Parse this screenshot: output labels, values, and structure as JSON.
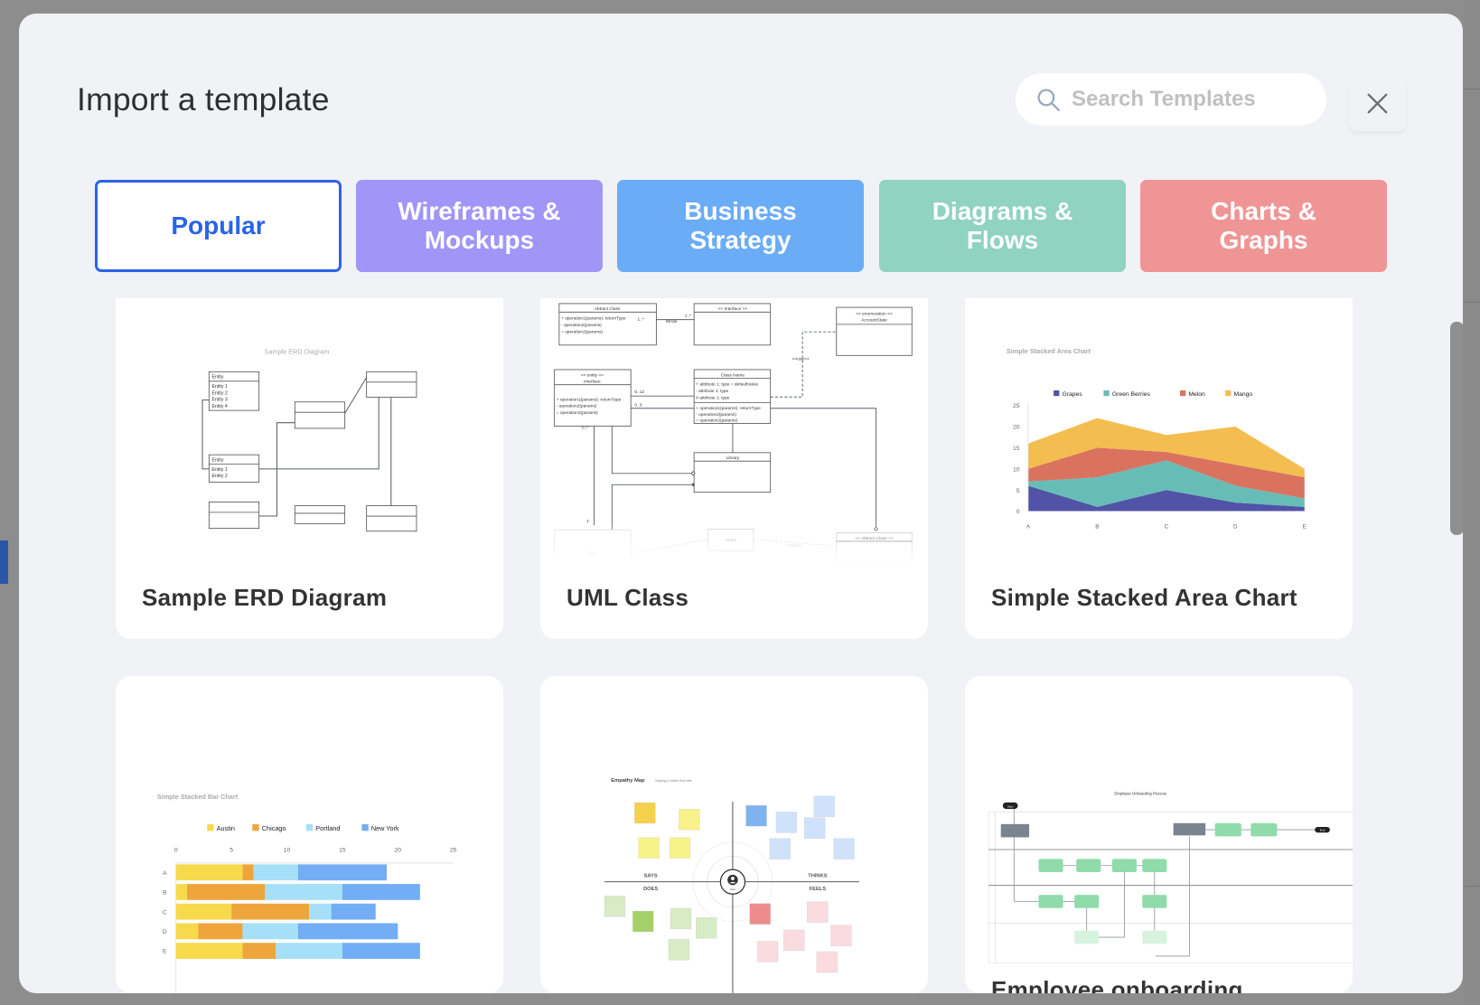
{
  "dialog": {
    "title": "Import a template",
    "search": {
      "placeholder": "Search Templates",
      "value": "",
      "icon": "search-icon"
    },
    "close_icon": "close-icon"
  },
  "tabs": [
    {
      "label": "Popular",
      "color": "#ffffff",
      "active": true
    },
    {
      "label": "Wireframes &\nMockups",
      "color": "#a195f8",
      "active": false
    },
    {
      "label": "Business\nStrategy",
      "color": "#6aacf5",
      "active": false
    },
    {
      "label": "Diagrams &\nFlows",
      "color": "#8fd3c0",
      "active": false
    },
    {
      "label": "Charts &\nGraphs",
      "color": "#f09595",
      "active": false
    }
  ],
  "accent_color": "#2a63e6",
  "templates": [
    {
      "title": "Sample ERD Diagram",
      "preview": {
        "heading": "Sample ERD Diagram",
        "entity_a": {
          "header": "Entity",
          "rows": [
            "Entity 1",
            "Entity 2",
            "Entity 3",
            "Entity 4"
          ]
        },
        "entity_b": {
          "header": "Entity",
          "rows": [
            "Entity 1",
            "Entity 2"
          ]
        }
      }
    },
    {
      "title": "UML Class",
      "preview": {
        "abstract_class": {
          "header": "Abtract Class",
          "rows": [
            "+ operation1(params): returnType",
            "- operation2(params)",
            "= operation2(params)"
          ]
        },
        "interface": {
          "header": "<< Interface >>"
        },
        "enumeration": {
          "header": "<< enumeration >>",
          "sub": "AccountState"
        },
        "entity": {
          "header": "<< entity >>",
          "sub": "Interface",
          "rows": [
            "+ operation1(params): returnType",
            "- operation2(params)",
            "= operation2(params)"
          ]
        },
        "class_name": {
          "header": "Class Name",
          "attrs": [
            "+ attribute 1: type = defaultValue",
            "- attribute 1: type",
            "# attribute 1: type"
          ],
          "ops": [
            "+ operation1(params): returnType",
            "- operation2(params)",
            "= operation2(params)"
          ]
        },
        "library": {
          "header": "Library"
        },
        "class": "Class",
        "class2": "Class",
        "abstract_class_2": "<< Abtract Class >>",
        "labels": {
          "wrote": "Wrote",
          "m1": "1..*",
          "m2": "1..*",
          "m3": "0..12",
          "m4": "0..3",
          "m5": "0..*",
          "m6": "1",
          "use": "<<use>>",
          "use2": "<<use>>"
        }
      }
    },
    {
      "title": "Simple Stacked Area Chart",
      "preview": {
        "heading": "Simple Stacked Area Chart"
      }
    },
    {
      "title": "",
      "preview": {
        "heading": "Simple Stacked Bar Chart"
      }
    },
    {
      "title": "",
      "preview": {
        "heading": "Empathy Map",
        "subheading": "Buying a child's first bike",
        "quadrants": [
          "SAYS",
          "THINKS",
          "DOES",
          "FEELS"
        ],
        "user_label": "User"
      }
    },
    {
      "title": "Employee onboarding",
      "preview": {
        "heading": "Employee Onboarding Process",
        "start": "Start",
        "end": "End"
      }
    }
  ],
  "chart_data": [
    {
      "type": "area",
      "title": "Simple Stacked Area Chart",
      "stacked": true,
      "categories": [
        "A",
        "B",
        "C",
        "D",
        "E"
      ],
      "series": [
        {
          "name": "Grapes",
          "color": "#5153a6",
          "values": [
            6,
            1,
            5,
            2,
            1
          ]
        },
        {
          "name": "Green Berries",
          "color": "#66bdb8",
          "values": [
            1,
            7,
            7,
            4,
            2
          ]
        },
        {
          "name": "Melon",
          "color": "#d9735f",
          "values": [
            3,
            7,
            2,
            5,
            5
          ]
        },
        {
          "name": "Mango",
          "color": "#f3bd4f",
          "values": [
            6,
            7,
            4,
            9,
            2
          ]
        }
      ],
      "yticks": [
        "0",
        "5",
        "10",
        "15",
        "20",
        "25"
      ],
      "ylim": [
        0,
        25
      ],
      "legend": "top"
    },
    {
      "type": "bar",
      "orientation": "horizontal",
      "stacked": true,
      "title": "Simple Stacked Bar Chart",
      "categories": [
        "A",
        "B",
        "C",
        "D",
        "E"
      ],
      "series": [
        {
          "name": "Austin",
          "color": "#f6da4b",
          "values": [
            6,
            1,
            5,
            2,
            6
          ]
        },
        {
          "name": "Chicago",
          "color": "#eea63c",
          "values": [
            1,
            7,
            7,
            4,
            3
          ]
        },
        {
          "name": "Portland",
          "color": "#a5e0f8",
          "values": [
            4,
            7,
            2,
            5,
            6
          ]
        },
        {
          "name": "New York",
          "color": "#72adf5",
          "values": [
            8,
            7,
            4,
            9,
            7
          ]
        }
      ],
      "xticks": [
        "0",
        "5",
        "10",
        "15",
        "20",
        "25"
      ],
      "xlim": [
        0,
        25
      ],
      "legend": "top"
    }
  ]
}
